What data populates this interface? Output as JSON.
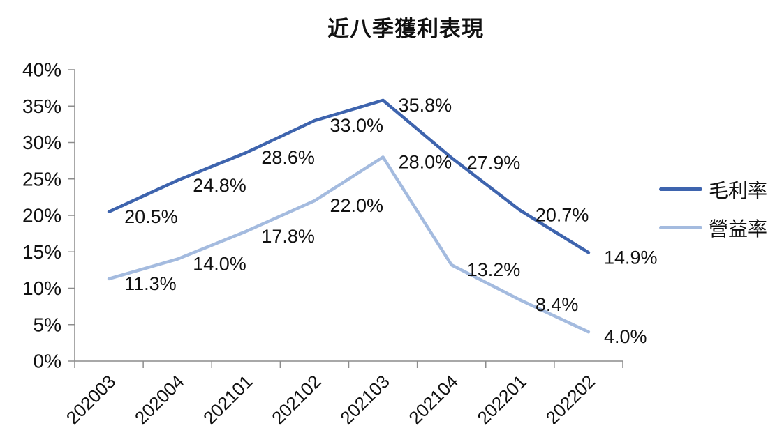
{
  "chart_data": {
    "type": "line",
    "title": "近八季獲利表現",
    "categories": [
      "202003",
      "202004",
      "202101",
      "202102",
      "202103",
      "202104",
      "202201",
      "202202"
    ],
    "series": [
      {
        "name": "毛利率",
        "values": [
          20.5,
          24.8,
          28.6,
          33.0,
          35.8,
          27.9,
          20.7,
          14.9
        ],
        "labels": [
          "20.5%",
          "24.8%",
          "28.6%",
          "33.0%",
          "35.8%",
          "27.9%",
          "20.7%",
          "14.9%"
        ],
        "color": "#3E64AE"
      },
      {
        "name": "營益率",
        "values": [
          11.3,
          14.0,
          17.8,
          22.0,
          28.0,
          13.2,
          8.4,
          4.0
        ],
        "labels": [
          "11.3%",
          "14.0%",
          "17.8%",
          "22.0%",
          "28.0%",
          "13.2%",
          "8.4%",
          "4.0%"
        ],
        "color": "#A4BBDF"
      }
    ],
    "y_tick_labels": [
      "0%",
      "5%",
      "10%",
      "15%",
      "20%",
      "25%",
      "30%",
      "35%",
      "40%"
    ],
    "ylim": [
      0,
      40
    ],
    "ytick_step": 5,
    "grid": false,
    "legend_position": "right",
    "axis_color": "#8C8C8C",
    "text_color": "#111111"
  }
}
